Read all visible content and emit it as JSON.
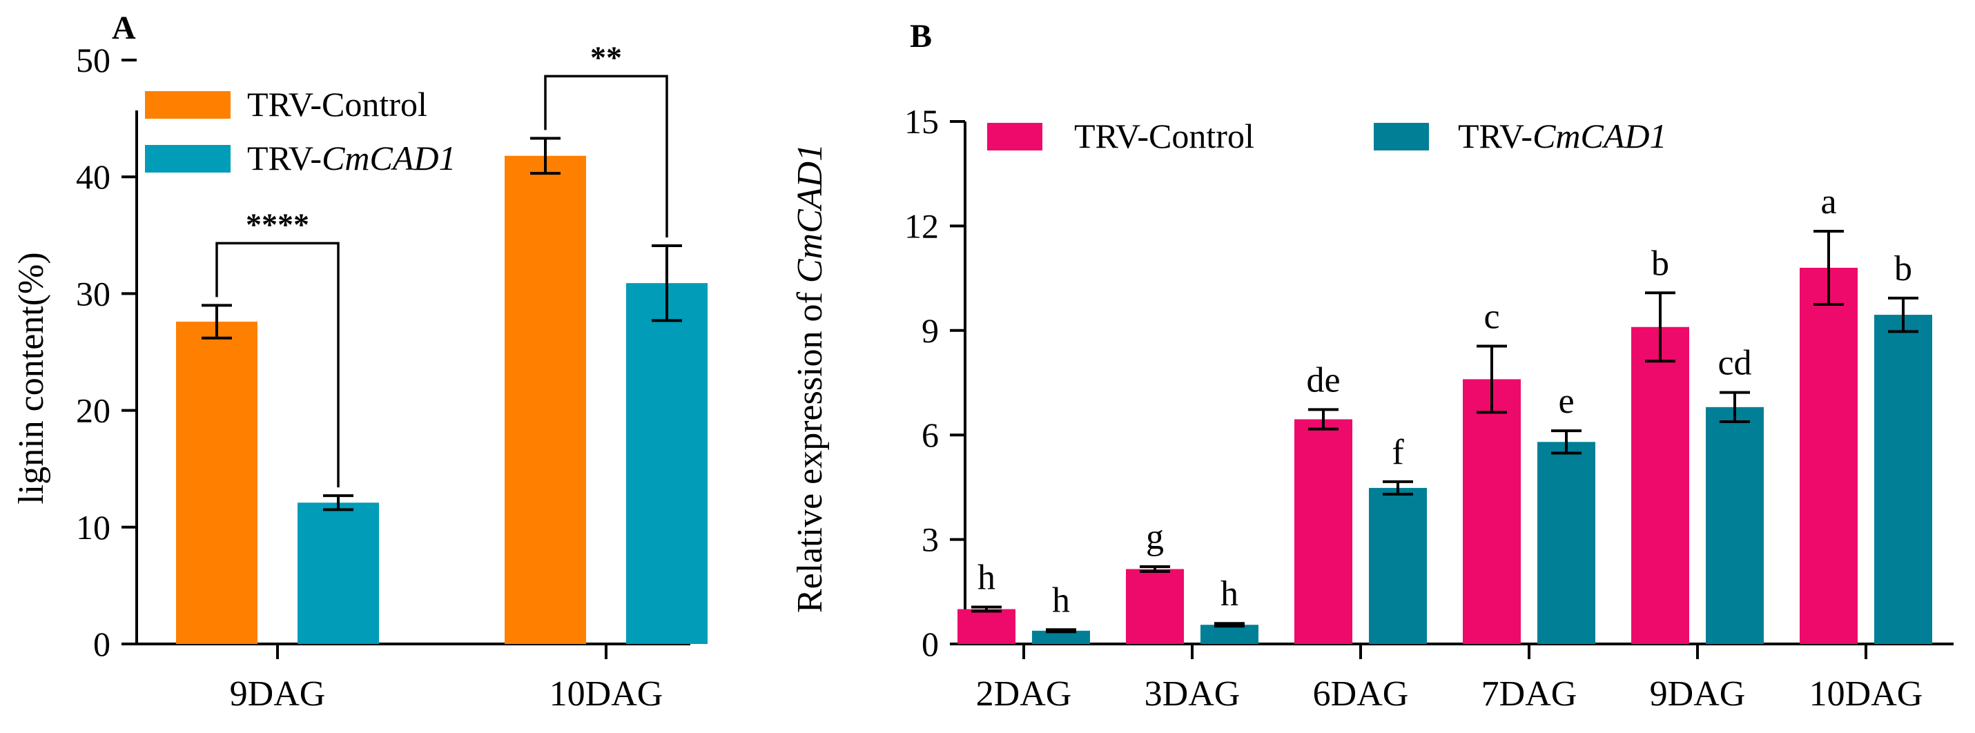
{
  "chart_data": [
    {
      "panel": "A",
      "type": "bar",
      "ylabel": "lignin content(%)",
      "ylim": [
        0,
        50
      ],
      "yticks": [
        "0",
        "10",
        "20",
        "30",
        "40",
        "50"
      ],
      "categories": [
        "9DAG",
        "10DAG"
      ],
      "legend": {
        "placement": "top-left"
      },
      "series": [
        {
          "name": "TRV-Control",
          "name_plain": "TRV-",
          "name_italic": "",
          "name_full_plain": "TRV-Control",
          "color": "#FF8000",
          "values": [
            27.6,
            41.8
          ],
          "errors": [
            1.4,
            1.5
          ]
        },
        {
          "name": "TRV-CmCAD1",
          "name_plain": "TRV-",
          "name_italic": "CmCAD1",
          "name_full_plain": "",
          "color": "#009CB8",
          "values": [
            12.1,
            30.9
          ],
          "errors": [
            0.6,
            3.2
          ]
        }
      ],
      "significance": [
        "****",
        "**"
      ]
    },
    {
      "panel": "B",
      "type": "bar",
      "ylabel_plain": "Relative expression of ",
      "ylabel_italic": "CmCAD1",
      "ylim": [
        0,
        15
      ],
      "yticks": [
        "0",
        "3",
        "6",
        "9",
        "12",
        "15"
      ],
      "categories": [
        "2DAG",
        "3DAG",
        "6DAG",
        "7DAG",
        "9DAG",
        "10DAG"
      ],
      "legend": {
        "placement": "top-left"
      },
      "series": [
        {
          "name": "TRV-Control",
          "name_plain": "TRV-Control",
          "name_italic": "",
          "color": "#EE0A6A",
          "values": [
            1.0,
            2.15,
            6.45,
            7.6,
            9.1,
            10.8
          ],
          "errors": [
            0.06,
            0.07,
            0.28,
            0.95,
            0.98,
            1.05
          ],
          "letters": [
            "h",
            "g",
            "de",
            "c",
            "b",
            "a"
          ]
        },
        {
          "name": "TRV-CmCAD1",
          "name_plain": "TRV-",
          "name_italic": "CmCAD1",
          "color": "#007F97",
          "values": [
            0.38,
            0.55,
            4.48,
            5.8,
            6.8,
            9.45
          ],
          "errors": [
            0.03,
            0.04,
            0.18,
            0.32,
            0.42,
            0.48
          ],
          "letters": [
            "h",
            "h",
            "f",
            "e",
            "cd",
            "b"
          ]
        }
      ]
    }
  ]
}
